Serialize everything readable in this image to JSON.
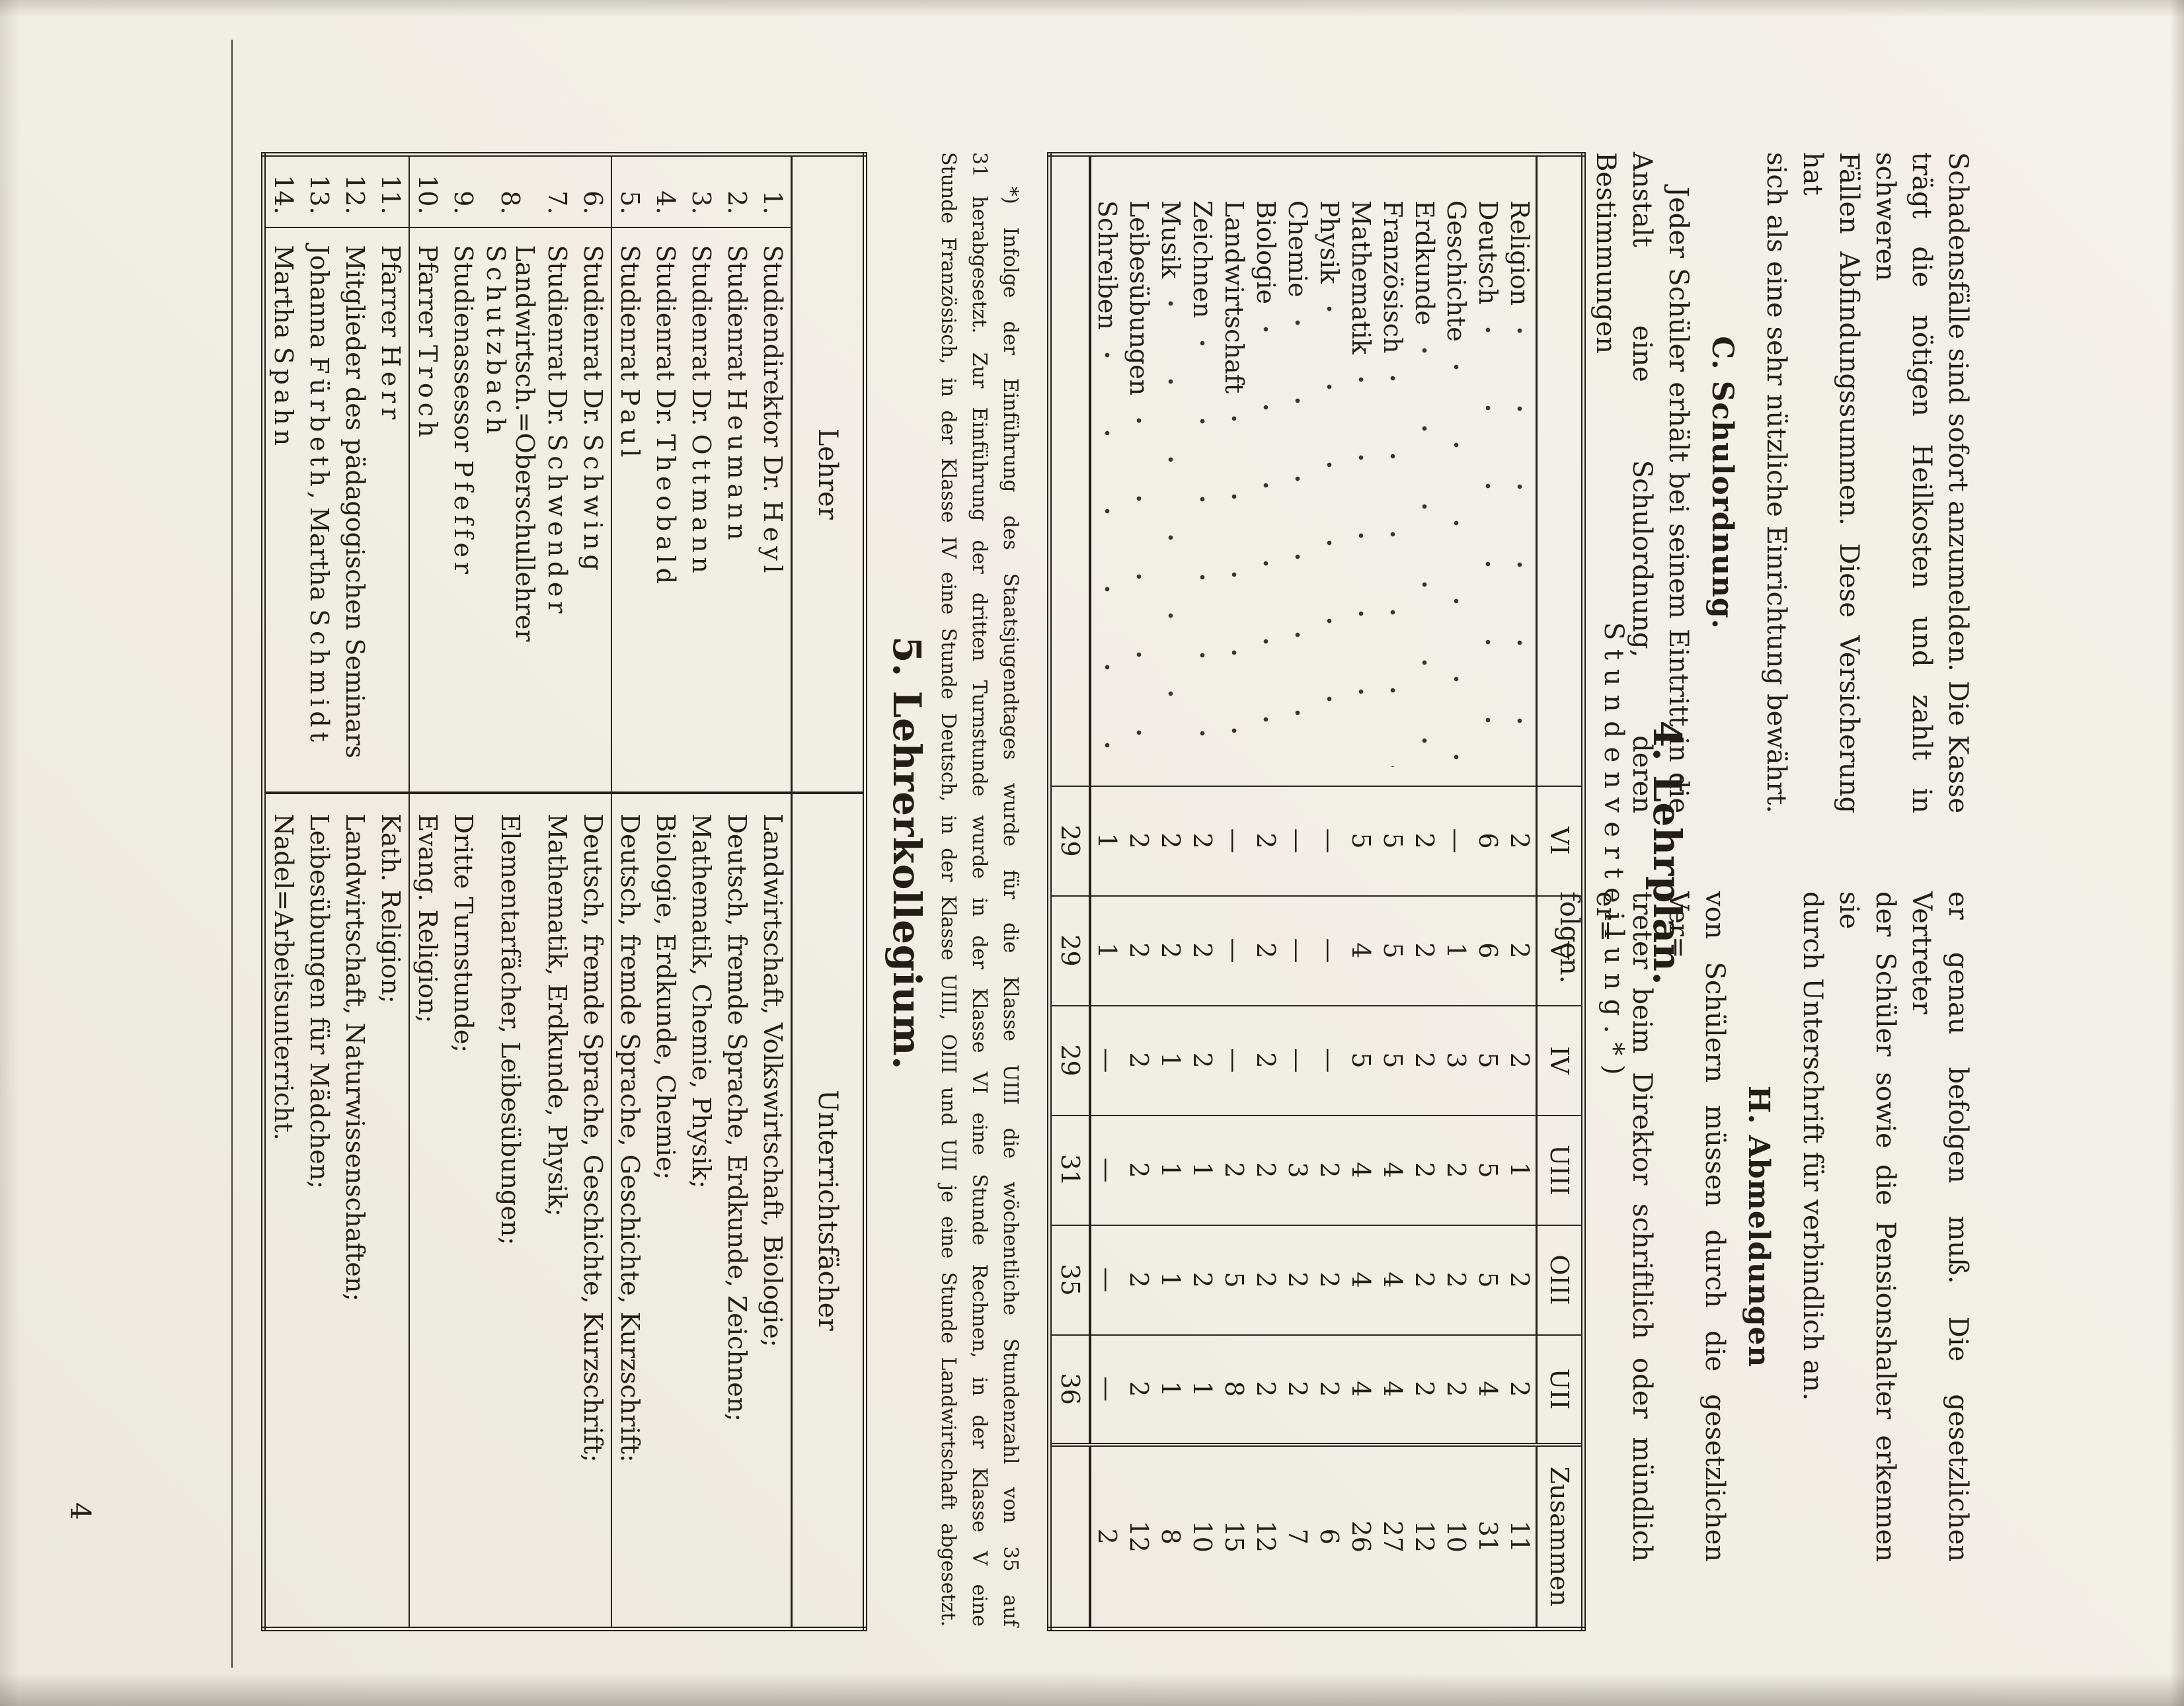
{
  "top_section": {
    "left_column": {
      "paragraph1_lines": [
        "Schadensfälle sind sofort anzumelden. Die Kasse",
        "trägt die nötigen Heilkosten und zahlt in schweren",
        "Fällen Abfindungssummen. Diese Versicherung hat",
        "sich als eine sehr nützliche Einrichtung bewährt."
      ],
      "heading": "C. Schulordnung.",
      "paragraph2_lines": [
        "Jeder Schüler erhält bei seinem Eintritt in die",
        "Anstalt eine Schulordnung, deren Bestimmungen"
      ]
    },
    "right_column": {
      "paragraph1_lines": [
        "er genau befolgen muß. Die gesetzlichen Vertreter",
        "der Schüler sowie die Pensionshalter erkennen sie",
        "durch Unterschrift für verbindlich an."
      ],
      "heading": "H. Abmeldungen",
      "paragraph2_lines": [
        "von Schülern müssen durch die gesetzlichen Ver=",
        "treter beim Direktor schriftlich oder mündlich er=",
        "folgen."
      ]
    }
  },
  "lehrplan": {
    "heading": "4. Lehrplan.",
    "subheading": "Stundenverteilung.*)"
  },
  "lehrplan_table": {
    "col_headers": [
      "VI",
      "V",
      "IV",
      "UIII",
      "OIII",
      "UII",
      "Zusammen"
    ],
    "rows": [
      {
        "subject": "Religion",
        "values": [
          "2",
          "2",
          "2",
          "1",
          "2",
          "2"
        ],
        "total": "11"
      },
      {
        "subject": "Deutsch",
        "values": [
          "6",
          "6",
          "5",
          "5",
          "5",
          "4"
        ],
        "total": "31"
      },
      {
        "subject": "Geschichte",
        "values": [
          "—",
          "1",
          "3",
          "2",
          "2",
          "2"
        ],
        "total": "10"
      },
      {
        "subject": "Erdkunde",
        "values": [
          "2",
          "2",
          "2",
          "2",
          "2",
          "2"
        ],
        "total": "12"
      },
      {
        "subject": "Französisch",
        "values": [
          "5",
          "5",
          "5",
          "4",
          "4",
          "4"
        ],
        "total": "27"
      },
      {
        "subject": "Mathematik",
        "values": [
          "5",
          "4",
          "5",
          "4",
          "4",
          "4"
        ],
        "total": "26"
      },
      {
        "subject": "Physik",
        "values": [
          "—",
          "—",
          "—",
          "2",
          "2",
          "2"
        ],
        "total": "6"
      },
      {
        "subject": "Chemie",
        "values": [
          "—",
          "—",
          "—",
          "3",
          "2",
          "2"
        ],
        "total": "7"
      },
      {
        "subject": "Biologie",
        "values": [
          "2",
          "2",
          "2",
          "2",
          "2",
          "2"
        ],
        "total": "12"
      },
      {
        "subject": "Landwirtschaft",
        "values": [
          "—",
          "—",
          "—",
          "2",
          "5",
          "8"
        ],
        "total": "15"
      },
      {
        "subject": "Zeichnen",
        "values": [
          "2",
          "2",
          "2",
          "1",
          "2",
          "1"
        ],
        "total": "10"
      },
      {
        "subject": "Musik",
        "values": [
          "2",
          "2",
          "1",
          "1",
          "1",
          "1"
        ],
        "total": "8"
      },
      {
        "subject": "Leibesübungen",
        "values": [
          "2",
          "2",
          "2",
          "2",
          "2",
          "2"
        ],
        "total": "12"
      },
      {
        "subject": "Schreiben",
        "values": [
          "1",
          "1",
          "—",
          "—",
          "—",
          "—"
        ],
        "total": "2"
      }
    ],
    "sum_row": {
      "values": [
        "29",
        "29",
        "29",
        "31",
        "35",
        "36"
      ],
      "total": ""
    }
  },
  "footnote_lines": [
    "*) Infolge der Einführung des Staatsjugendtages wurde für die Klasse UIII die wöchentliche Stundenzahl von 35 auf",
    "31 herabgesetzt. Zur Einführung der dritten Turnstunde wurde in der Klasse VI eine Stunde Rechnen, in der Klasse V eine",
    "Stunde Französisch, in der Klasse IV eine Stunde Deutsch, in der Klasse UIII, OIII und UII je eine Stunde Landwirtschaft abgesetzt."
  ],
  "kollegium": {
    "heading": "5. Lehrerkollegium."
  },
  "teachers_table": {
    "headers": {
      "lehrer": "Lehrer",
      "faecher": "Unterrichtsfächer"
    },
    "rows": [
      {
        "nr": "1.",
        "name": [
          {
            "t": "Studiendirektor Dr. "
          },
          {
            "s": "Heyl"
          }
        ],
        "subjects": "Landwirtschaft, Volkswirtschaft, Biologie;"
      },
      {
        "nr": "2.",
        "name": [
          {
            "t": "Studienrat "
          },
          {
            "s": "Heumann"
          }
        ],
        "subjects": "Deutsch, fremde Sprache, Erdkunde, Zeichnen;"
      },
      {
        "nr": "3.",
        "name": [
          {
            "t": "Studienrat Dr. "
          },
          {
            "s": "Ottmann"
          }
        ],
        "subjects": "Mathematik, Chemie, Physik;"
      },
      {
        "nr": "4.",
        "name": [
          {
            "t": "Studienrat Dr. "
          },
          {
            "s": "Theobald"
          }
        ],
        "subjects": "Biologie, Erdkunde, Chemie;"
      },
      {
        "nr": "5.",
        "name": [
          {
            "t": "Studienrat "
          },
          {
            "s": "Paul"
          }
        ],
        "subjects": "Deutsch, fremde Sprache, Geschichte, Kurzschrift:"
      },
      {
        "nr": "6.",
        "name": [
          {
            "t": "Studienrat Dr. "
          },
          {
            "s": "Schwing"
          }
        ],
        "subjects": "Deutsch, fremde Sprache, Geschichte, Kurzschrift;"
      },
      {
        "nr": "7.",
        "name": [
          {
            "t": "Studienrat Dr. "
          },
          {
            "s": "Schwender"
          }
        ],
        "subjects": "Mathematik, Erdkunde, Physik;"
      },
      {
        "nr": "8.",
        "name": [
          {
            "t": "Landwirtsch.=Oberschullehrer "
          },
          {
            "s": "Schutzbach"
          }
        ],
        "subjects": "Elementarfächer, Leibesübungen;"
      },
      {
        "nr": "9.",
        "name": [
          {
            "t": "Studienassessor "
          },
          {
            "s": "Pfeffer"
          }
        ],
        "subjects": "Dritte Turnstunde;"
      },
      {
        "nr": "10.",
        "name": [
          {
            "t": "Pfarrer "
          },
          {
            "s": "Troch"
          }
        ],
        "subjects": "Evang. Religion;"
      },
      {
        "nr": "11.",
        "name": [
          {
            "t": "Pfarrer "
          },
          {
            "s": "Herr"
          }
        ],
        "subjects": "Kath. Religion;"
      },
      {
        "nr": "12.",
        "name": [
          {
            "t": "Mitglieder des pädagogischen Seminars"
          }
        ],
        "subjects": "Landwirtschaft, Naturwissenschaften;"
      },
      {
        "nr": "13.",
        "name": [
          {
            "t": "Johanna "
          },
          {
            "s": "Fürbeth"
          },
          {
            "t": ", Martha "
          },
          {
            "s": "Schmidt"
          }
        ],
        "subjects": "Leibesübungen für Mädchen;"
      },
      {
        "nr": "14.",
        "name": [
          {
            "t": "Martha "
          },
          {
            "s": "Spahn"
          }
        ],
        "subjects": "Nadel=Arbeitsunterricht."
      }
    ],
    "group_rule_after_rows": [
      5,
      10
    ]
  },
  "footer": {
    "page_number": "4"
  }
}
